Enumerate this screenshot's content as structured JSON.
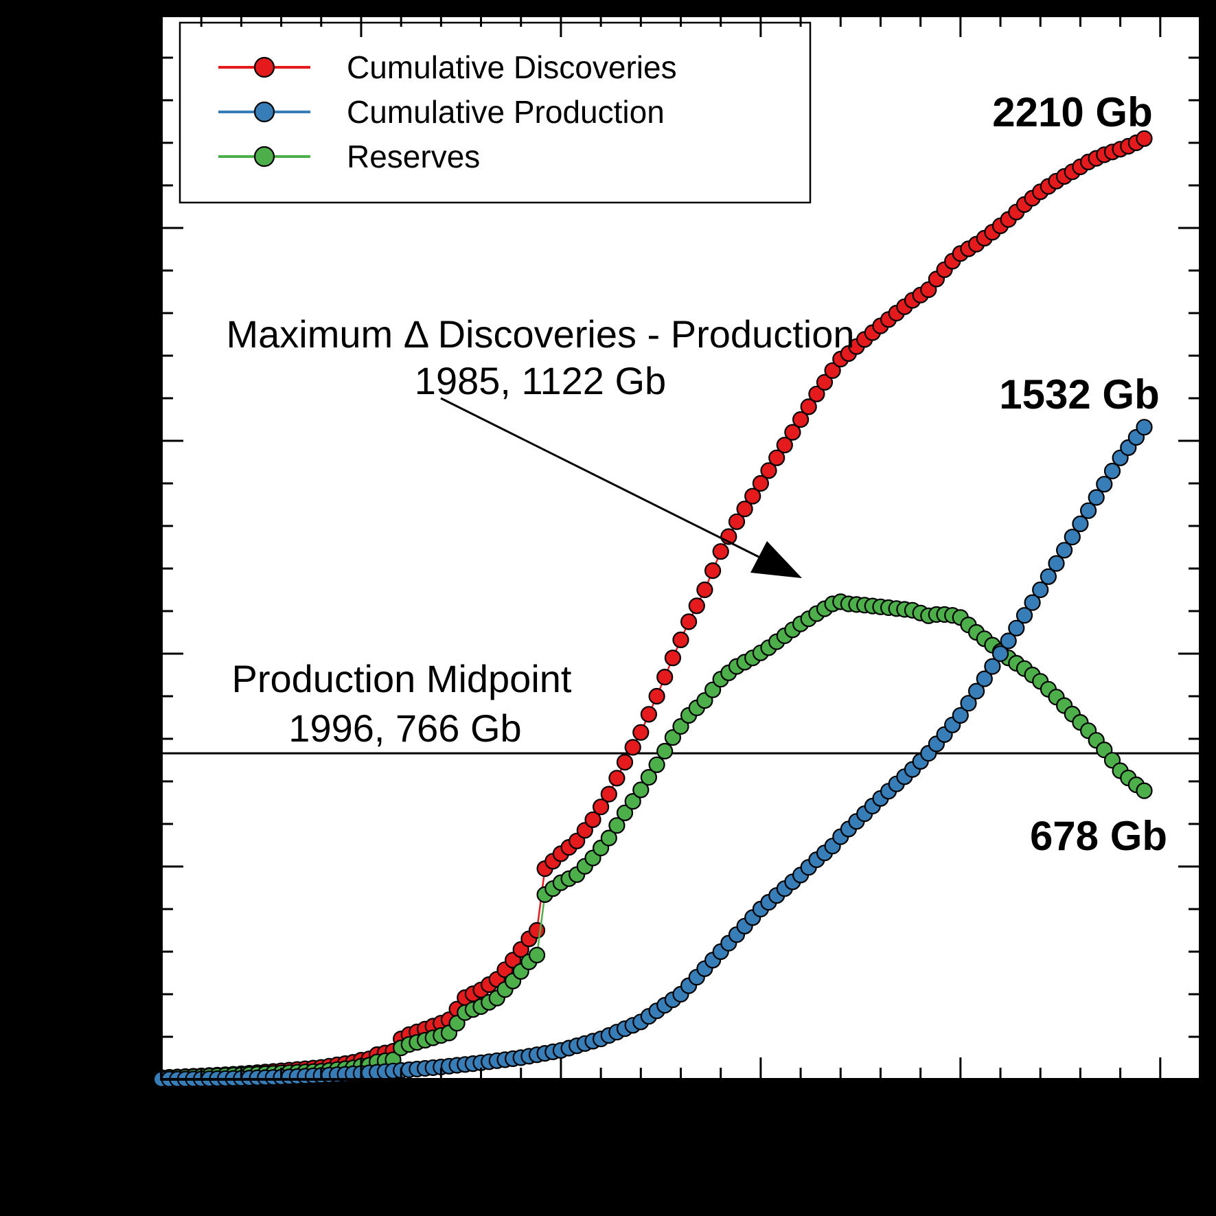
{
  "figure": {
    "outer_background": "#000000",
    "plot_background": "#ffffff",
    "axis_color": "#000000"
  },
  "legend": {
    "items": [
      {
        "label": "Cumulative Discoveries",
        "color": "#e41a1c"
      },
      {
        "label": "Cumulative Production",
        "color": "#377eb8"
      },
      {
        "label": "Reserves",
        "color": "#4daf4a"
      }
    ]
  },
  "annotations": {
    "max_delta": {
      "line1": "Maximum Δ Discoveries - Production",
      "line2": "1985, 1122 Gb"
    },
    "production_midpoint": {
      "line1": "Production Midpoint",
      "line2": "1996, 766 Gb"
    },
    "final_discoveries": "2210 Gb",
    "final_production": "1532 Gb",
    "final_reserves": "678 Gb"
  },
  "chart_data": {
    "type": "line",
    "marker": "circle",
    "title": "",
    "xlabel": "",
    "ylabel": "",
    "x_axis": {
      "range": [
        1900,
        2030
      ],
      "minor_tick_step_years": 5,
      "major_tick_step_years": 25,
      "tick_labels_visible": false
    },
    "y_axis": {
      "unit": "Gb",
      "range": [
        0,
        2500
      ],
      "minor_tick_step": 100,
      "major_tick_step": 500,
      "tick_labels_visible": false
    },
    "reference_line_gb": 766,
    "key_points": {
      "max_delta_year": 1985,
      "max_delta_gb": 1122,
      "production_midpoint_year": 1996,
      "production_midpoint_gb": 766,
      "final_year": 2023,
      "final_discoveries_gb": 2210,
      "final_production_gb": 1532,
      "final_reserves_gb": 678
    },
    "series": [
      {
        "name": "Cumulative Discoveries",
        "color": "#e41a1c",
        "end_label": "2210 Gb",
        "points": [
          [
            1900,
            4
          ],
          [
            1905,
            8
          ],
          [
            1910,
            13
          ],
          [
            1915,
            20
          ],
          [
            1920,
            28
          ],
          [
            1924,
            40
          ],
          [
            1925,
            45
          ],
          [
            1926,
            48
          ],
          [
            1927,
            58
          ],
          [
            1929,
            66
          ],
          [
            1930,
            95
          ],
          [
            1931,
            105
          ],
          [
            1933,
            118
          ],
          [
            1935,
            132
          ],
          [
            1936,
            140
          ],
          [
            1937,
            165
          ],
          [
            1938,
            192
          ],
          [
            1940,
            210
          ],
          [
            1942,
            235
          ],
          [
            1944,
            280
          ],
          [
            1946,
            330
          ],
          [
            1947,
            350
          ],
          [
            1948,
            495
          ],
          [
            1950,
            530
          ],
          [
            1952,
            560
          ],
          [
            1954,
            610
          ],
          [
            1956,
            670
          ],
          [
            1958,
            745
          ],
          [
            1960,
            815
          ],
          [
            1962,
            900
          ],
          [
            1964,
            990
          ],
          [
            1966,
            1075
          ],
          [
            1968,
            1150
          ],
          [
            1970,
            1240
          ],
          [
            1972,
            1310
          ],
          [
            1974,
            1370
          ],
          [
            1976,
            1430
          ],
          [
            1978,
            1490
          ],
          [
            1980,
            1550
          ],
          [
            1982,
            1610
          ],
          [
            1984,
            1665
          ],
          [
            1985,
            1692
          ],
          [
            1986,
            1705
          ],
          [
            1988,
            1738
          ],
          [
            1990,
            1770
          ],
          [
            1992,
            1800
          ],
          [
            1994,
            1830
          ],
          [
            1996,
            1855
          ],
          [
            1997,
            1880
          ],
          [
            1998,
            1902
          ],
          [
            1999,
            1922
          ],
          [
            2000,
            1940
          ],
          [
            2002,
            1962
          ],
          [
            2004,
            1990
          ],
          [
            2006,
            2020
          ],
          [
            2008,
            2055
          ],
          [
            2010,
            2085
          ],
          [
            2012,
            2110
          ],
          [
            2014,
            2132
          ],
          [
            2016,
            2155
          ],
          [
            2018,
            2172
          ],
          [
            2020,
            2185
          ],
          [
            2021,
            2192
          ],
          [
            2022,
            2200
          ],
          [
            2023,
            2210
          ]
        ]
      },
      {
        "name": "Cumulative Production",
        "color": "#377eb8",
        "end_label": "1532 Gb",
        "points": [
          [
            1900,
            0.3
          ],
          [
            1905,
            1
          ],
          [
            1910,
            2.5
          ],
          [
            1915,
            5
          ],
          [
            1920,
            9
          ],
          [
            1925,
            14
          ],
          [
            1930,
            21
          ],
          [
            1935,
            29
          ],
          [
            1940,
            39
          ],
          [
            1945,
            51
          ],
          [
            1950,
            68
          ],
          [
            1955,
            95
          ],
          [
            1960,
            135
          ],
          [
            1965,
            200
          ],
          [
            1970,
            300
          ],
          [
            1975,
            400
          ],
          [
            1980,
            480
          ],
          [
            1982,
            516
          ],
          [
            1984,
            548
          ],
          [
            1985,
            570
          ],
          [
            1986,
            588
          ],
          [
            1988,
            624
          ],
          [
            1990,
            660
          ],
          [
            1992,
            694
          ],
          [
            1994,
            728
          ],
          [
            1996,
            766
          ],
          [
            1998,
            810
          ],
          [
            2000,
            855
          ],
          [
            2002,
            912
          ],
          [
            2004,
            970
          ],
          [
            2006,
            1030
          ],
          [
            2008,
            1090
          ],
          [
            2010,
            1150
          ],
          [
            2012,
            1212
          ],
          [
            2014,
            1274
          ],
          [
            2016,
            1336
          ],
          [
            2018,
            1398
          ],
          [
            2020,
            1460
          ],
          [
            2021,
            1484
          ],
          [
            2022,
            1508
          ],
          [
            2023,
            1532
          ]
        ]
      },
      {
        "name": "Reserves",
        "color": "#4daf4a",
        "end_label": "678 Gb",
        "points": [
          [
            1900,
            3.7
          ],
          [
            1905,
            7
          ],
          [
            1910,
            10.5
          ],
          [
            1915,
            15
          ],
          [
            1920,
            19
          ],
          [
            1924,
            27
          ],
          [
            1925,
            31
          ],
          [
            1926,
            33
          ],
          [
            1927,
            41
          ],
          [
            1929,
            46
          ],
          [
            1930,
            74
          ],
          [
            1931,
            82
          ],
          [
            1933,
            92
          ],
          [
            1935,
            103
          ],
          [
            1936,
            109
          ],
          [
            1937,
            132
          ],
          [
            1938,
            157
          ],
          [
            1940,
            171
          ],
          [
            1942,
            191
          ],
          [
            1944,
            231
          ],
          [
            1946,
            276
          ],
          [
            1947,
            292
          ],
          [
            1948,
            434
          ],
          [
            1950,
            462
          ],
          [
            1952,
            481
          ],
          [
            1954,
            520
          ],
          [
            1956,
            567
          ],
          [
            1958,
            626
          ],
          [
            1960,
            680
          ],
          [
            1962,
            739
          ],
          [
            1964,
            803
          ],
          [
            1966,
            855
          ],
          [
            1968,
            890
          ],
          [
            1970,
            940
          ],
          [
            1972,
            970
          ],
          [
            1974,
            990
          ],
          [
            1976,
            1014
          ],
          [
            1978,
            1042
          ],
          [
            1980,
            1070
          ],
          [
            1982,
            1094
          ],
          [
            1984,
            1117
          ],
          [
            1985,
            1122
          ],
          [
            1986,
            1117
          ],
          [
            1988,
            1114
          ],
          [
            1990,
            1110
          ],
          [
            1992,
            1106
          ],
          [
            1994,
            1102
          ],
          [
            1996,
            1089
          ],
          [
            1997,
            1092
          ],
          [
            1998,
            1092
          ],
          [
            1999,
            1090
          ],
          [
            2000,
            1085
          ],
          [
            2002,
            1050
          ],
          [
            2004,
            1020
          ],
          [
            2006,
            990
          ],
          [
            2008,
            965
          ],
          [
            2010,
            935
          ],
          [
            2012,
            898
          ],
          [
            2014,
            858
          ],
          [
            2016,
            819
          ],
          [
            2018,
            774
          ],
          [
            2020,
            725
          ],
          [
            2021,
            708
          ],
          [
            2022,
            692
          ],
          [
            2023,
            678
          ]
        ]
      }
    ]
  }
}
